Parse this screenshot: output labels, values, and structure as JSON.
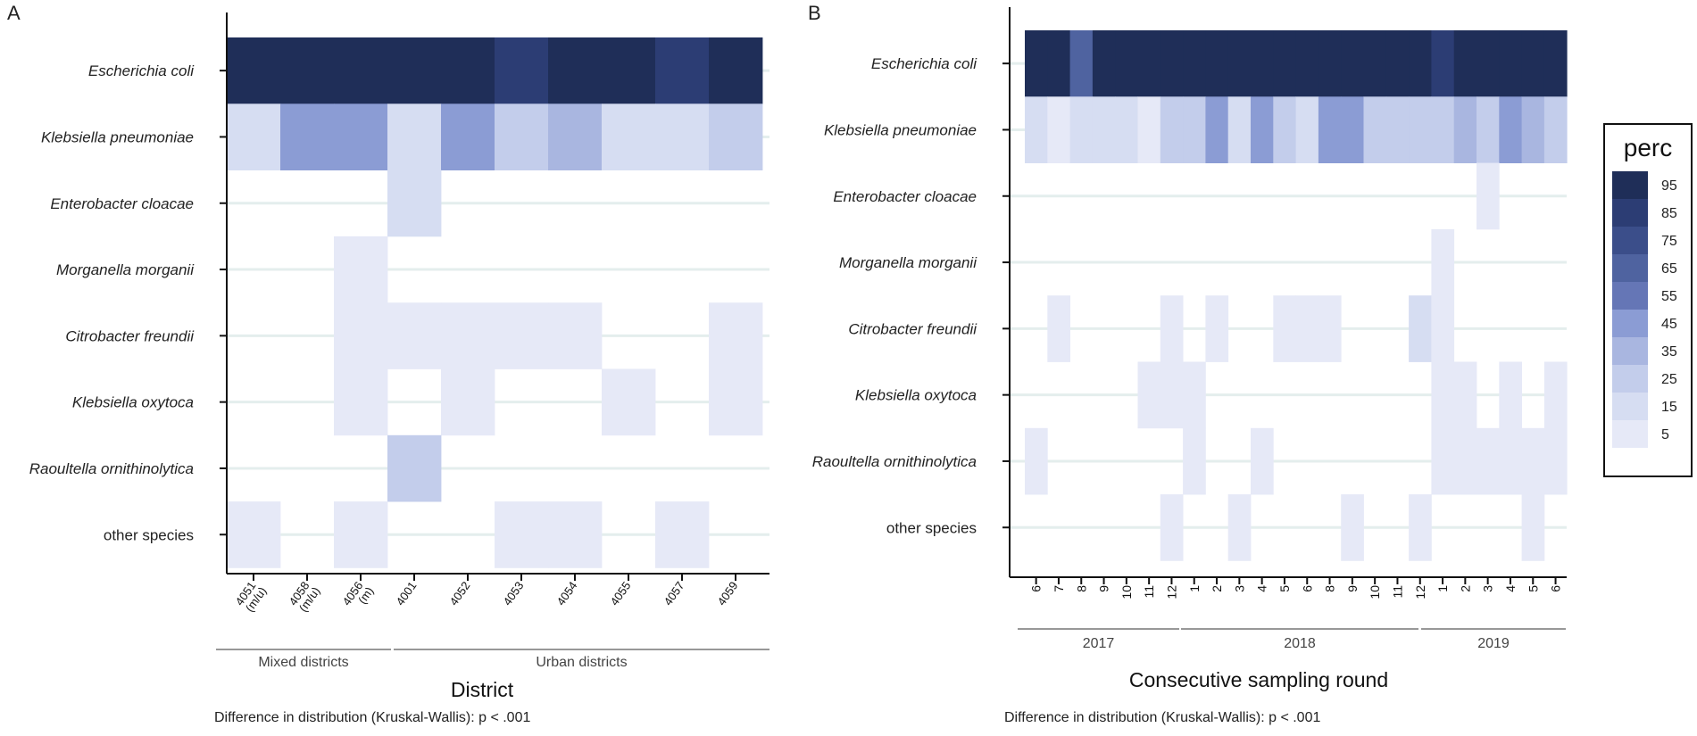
{
  "chart_data": [
    {
      "panel": "A",
      "type": "heatmap",
      "species": [
        "Escherichia coli",
        "Klebsiella pneumoniae",
        "Enterobacter cloacae",
        "Morganella morganii",
        "Citrobacter freundii",
        "Klebsiella oxytoca",
        "Raoultella ornithinolytica",
        "other species"
      ],
      "x_categories": [
        {
          "code": "4051",
          "sub": "(m/u)"
        },
        {
          "code": "4058",
          "sub": "(m/u)"
        },
        {
          "code": "4056",
          "sub": "(m)"
        },
        {
          "code": "4001",
          "sub": ""
        },
        {
          "code": "4052",
          "sub": ""
        },
        {
          "code": "4053",
          "sub": ""
        },
        {
          "code": "4054",
          "sub": ""
        },
        {
          "code": "4055",
          "sub": ""
        },
        {
          "code": "4057",
          "sub": ""
        },
        {
          "code": "4059",
          "sub": ""
        }
      ],
      "values": [
        [
          95,
          95,
          95,
          95,
          95,
          85,
          95,
          95,
          85,
          95
        ],
        [
          10,
          45,
          45,
          10,
          45,
          20,
          35,
          10,
          10,
          20
        ],
        [
          0,
          0,
          0,
          10,
          0,
          0,
          0,
          0,
          0,
          0
        ],
        [
          0,
          0,
          5,
          0,
          0,
          0,
          0,
          0,
          0,
          0
        ],
        [
          0,
          0,
          5,
          5,
          5,
          5,
          5,
          0,
          0,
          5
        ],
        [
          0,
          0,
          5,
          0,
          5,
          0,
          0,
          5,
          0,
          5
        ],
        [
          0,
          0,
          0,
          25,
          0,
          0,
          0,
          0,
          0,
          0
        ],
        [
          5,
          0,
          5,
          0,
          0,
          5,
          5,
          0,
          5,
          0
        ]
      ],
      "groups": [
        {
          "label": "Mixed districts",
          "first": 0,
          "last": 2
        },
        {
          "label": "Urban districts",
          "first": 3,
          "last": 9
        }
      ],
      "xlabel": "District",
      "note": "Difference in distribution (Kruskal-Wallis): p < .001"
    },
    {
      "panel": "B",
      "type": "heatmap",
      "species": [
        "Escherichia coli",
        "Klebsiella pneumoniae",
        "Enterobacter cloacae",
        "Morganella morganii",
        "Citrobacter freundii",
        "Klebsiella oxytoca",
        "Raoultella ornithinolytica",
        "other species"
      ],
      "x_categories": [
        "6",
        "7",
        "8",
        "9",
        "10",
        "11",
        "12",
        "1",
        "2",
        "3",
        "4",
        "5",
        "6",
        "8",
        "9",
        "10",
        "11",
        "12",
        "1",
        "2",
        "3",
        "4",
        "5",
        "6"
      ],
      "values": [
        [
          95,
          95,
          65,
          95,
          95,
          95,
          95,
          95,
          95,
          95,
          95,
          95,
          95,
          95,
          95,
          95,
          95,
          95,
          85,
          95,
          95,
          95,
          95,
          95
        ],
        [
          10,
          5,
          10,
          10,
          10,
          5,
          20,
          20,
          45,
          10,
          45,
          20,
          10,
          45,
          45,
          20,
          20,
          20,
          20,
          35,
          20,
          45,
          35,
          20
        ],
        [
          0,
          0,
          0,
          0,
          0,
          0,
          0,
          0,
          0,
          0,
          0,
          0,
          0,
          0,
          0,
          0,
          0,
          0,
          0,
          0,
          5,
          0,
          0,
          0
        ],
        [
          0,
          0,
          0,
          0,
          0,
          0,
          0,
          0,
          0,
          0,
          0,
          0,
          0,
          0,
          0,
          0,
          0,
          0,
          5,
          0,
          0,
          0,
          0,
          0
        ],
        [
          0,
          5,
          0,
          0,
          0,
          0,
          5,
          0,
          5,
          0,
          0,
          5,
          5,
          5,
          0,
          0,
          0,
          10,
          5,
          0,
          0,
          0,
          0,
          0
        ],
        [
          0,
          0,
          0,
          0,
          0,
          5,
          5,
          5,
          0,
          0,
          0,
          0,
          0,
          0,
          0,
          0,
          0,
          0,
          5,
          5,
          0,
          5,
          0,
          5
        ],
        [
          5,
          0,
          0,
          0,
          0,
          0,
          0,
          5,
          0,
          0,
          5,
          0,
          0,
          0,
          0,
          0,
          0,
          0,
          5,
          5,
          5,
          5,
          5,
          5
        ],
        [
          0,
          0,
          0,
          0,
          0,
          0,
          5,
          0,
          0,
          5,
          0,
          0,
          0,
          0,
          5,
          0,
          0,
          5,
          0,
          0,
          0,
          0,
          5,
          0
        ]
      ],
      "groups": [
        {
          "label": "2017",
          "first": 0,
          "last": 6
        },
        {
          "label": "2018",
          "first": 7,
          "last": 17
        },
        {
          "label": "2019",
          "first": 18,
          "last": 23
        }
      ],
      "xlabel": "Consecutive sampling round",
      "note": "Difference in distribution (Kruskal-Wallis): p < .001"
    }
  ],
  "legend": {
    "title": "perc",
    "bins": [
      {
        "label": "95",
        "value": 95,
        "color": "#1f2e58"
      },
      {
        "label": "85",
        "value": 85,
        "color": "#2c3d74"
      },
      {
        "label": "75",
        "value": 75,
        "color": "#3b4e8a"
      },
      {
        "label": "65",
        "value": 65,
        "color": "#4f63a0"
      },
      {
        "label": "55",
        "value": 55,
        "color": "#6576b6"
      },
      {
        "label": "45",
        "value": 45,
        "color": "#8b9cd4"
      },
      {
        "label": "35",
        "value": 35,
        "color": "#a9b6e0"
      },
      {
        "label": "25",
        "value": 25,
        "color": "#c3cdeb"
      },
      {
        "label": "15",
        "value": 15,
        "color": "#d6ddf2"
      },
      {
        "label": "5",
        "value": 5,
        "color": "#e6e9f7"
      }
    ]
  }
}
